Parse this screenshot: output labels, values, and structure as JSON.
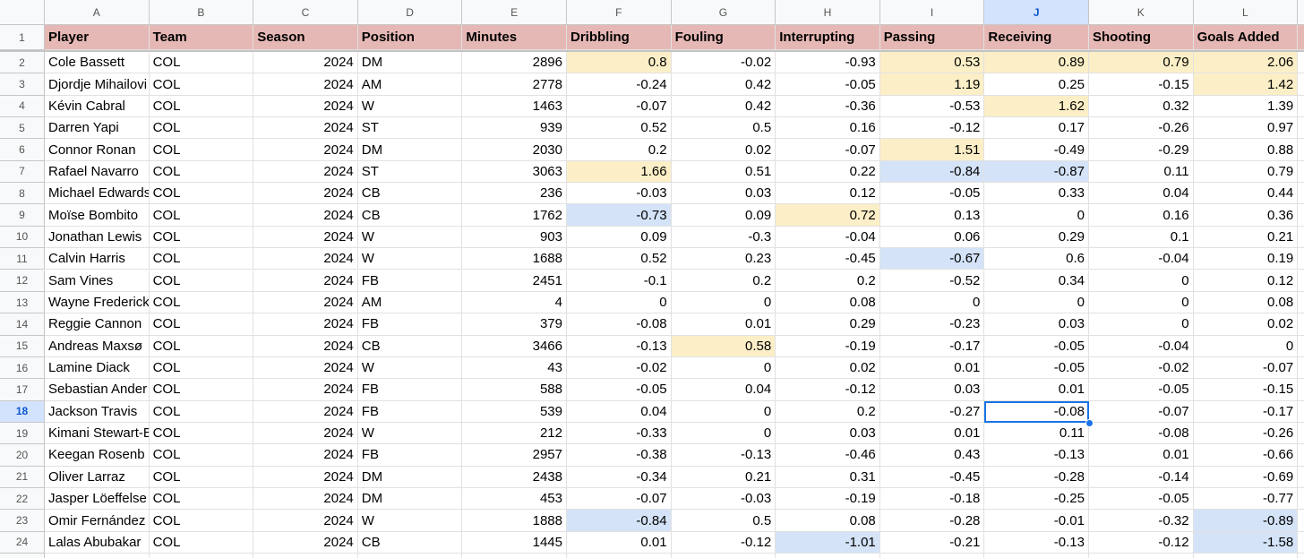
{
  "columns": [
    "A",
    "B",
    "C",
    "D",
    "E",
    "F",
    "G",
    "H",
    "I",
    "J",
    "K",
    "L"
  ],
  "row_numbers": [
    1,
    2,
    3,
    4,
    5,
    6,
    7,
    8,
    9,
    10,
    11,
    12,
    13,
    14,
    15,
    16,
    17,
    18,
    19,
    20,
    21,
    22,
    23,
    24
  ],
  "table": {
    "header": [
      "Player",
      "Team",
      "Season",
      "Position",
      "Minutes",
      "Dribbling",
      "Fouling",
      "Interrupting",
      "Passing",
      "Receiving",
      "Shooting",
      "Goals Added"
    ],
    "rows": [
      [
        "Cole Bassett",
        "COL",
        2024,
        "DM",
        2896,
        0.8,
        -0.02,
        -0.93,
        0.53,
        0.89,
        0.79,
        2.06
      ],
      [
        "Djordje Mihailovi",
        "COL",
        2024,
        "AM",
        2778,
        -0.24,
        0.42,
        -0.05,
        1.19,
        0.25,
        -0.15,
        1.42
      ],
      [
        "Kévin Cabral",
        "COL",
        2024,
        "W",
        1463,
        -0.07,
        0.42,
        -0.36,
        -0.53,
        1.62,
        0.32,
        1.39
      ],
      [
        "Darren Yapi",
        "COL",
        2024,
        "ST",
        939,
        0.52,
        0.5,
        0.16,
        -0.12,
        0.17,
        -0.26,
        0.97
      ],
      [
        "Connor Ronan",
        "COL",
        2024,
        "DM",
        2030,
        0.2,
        0.02,
        -0.07,
        1.51,
        -0.49,
        -0.29,
        0.88
      ],
      [
        "Rafael Navarro",
        "COL",
        2024,
        "ST",
        3063,
        1.66,
        0.51,
        0.22,
        -0.84,
        -0.87,
        0.11,
        0.79
      ],
      [
        "Michael Edwards",
        "COL",
        2024,
        "CB",
        236,
        -0.03,
        0.03,
        0.12,
        -0.05,
        0.33,
        0.04,
        0.44
      ],
      [
        "Moïse Bombito",
        "COL",
        2024,
        "CB",
        1762,
        -0.73,
        0.09,
        0.72,
        0.13,
        0,
        0.16,
        0.36
      ],
      [
        "Jonathan Lewis",
        "COL",
        2024,
        "W",
        903,
        0.09,
        -0.3,
        -0.04,
        0.06,
        0.29,
        0.1,
        0.21
      ],
      [
        "Calvin Harris",
        "COL",
        2024,
        "W",
        1688,
        0.52,
        0.23,
        -0.45,
        -0.67,
        0.6,
        -0.04,
        0.19
      ],
      [
        "Sam Vines",
        "COL",
        2024,
        "FB",
        2451,
        -0.1,
        0.2,
        0.2,
        -0.52,
        0.34,
        0,
        0.12
      ],
      [
        "Wayne Frederick",
        "COL",
        2024,
        "AM",
        4,
        0,
        0,
        0.08,
        0,
        0,
        0,
        0.08
      ],
      [
        "Reggie Cannon",
        "COL",
        2024,
        "FB",
        379,
        -0.08,
        0.01,
        0.29,
        -0.23,
        0.03,
        0,
        0.02
      ],
      [
        "Andreas Maxsø",
        "COL",
        2024,
        "CB",
        3466,
        -0.13,
        0.58,
        -0.19,
        -0.17,
        -0.05,
        -0.04,
        0
      ],
      [
        "Lamine Diack",
        "COL",
        2024,
        "W",
        43,
        -0.02,
        0,
        0.02,
        0.01,
        -0.05,
        -0.02,
        -0.07
      ],
      [
        "Sebastian Ander",
        "COL",
        2024,
        "FB",
        588,
        -0.05,
        0.04,
        -0.12,
        0.03,
        0.01,
        -0.05,
        -0.15
      ],
      [
        "Jackson Travis",
        "COL",
        2024,
        "FB",
        539,
        0.04,
        0,
        0.2,
        -0.27,
        -0.08,
        -0.07,
        -0.17
      ],
      [
        "Kimani Stewart-B",
        "COL",
        2024,
        "W",
        212,
        -0.33,
        0,
        0.03,
        0.01,
        0.11,
        -0.08,
        -0.26
      ],
      [
        "Keegan Rosenb",
        "COL",
        2024,
        "FB",
        2957,
        -0.38,
        -0.13,
        -0.46,
        0.43,
        -0.13,
        0.01,
        -0.66
      ],
      [
        "Oliver Larraz",
        "COL",
        2024,
        "DM",
        2438,
        -0.34,
        0.21,
        0.31,
        -0.45,
        -0.28,
        -0.14,
        -0.69
      ],
      [
        "Jasper Löeffelse",
        "COL",
        2024,
        "DM",
        453,
        -0.07,
        -0.03,
        -0.19,
        -0.18,
        -0.25,
        -0.05,
        -0.77
      ],
      [
        "Omir Fernández",
        "COL",
        2024,
        "W",
        1888,
        -0.84,
        0.5,
        0.08,
        -0.28,
        -0.01,
        -0.32,
        -0.89
      ],
      [
        "Lalas Abubakar",
        "COL",
        2024,
        "CB",
        1445,
        0.01,
        -0.12,
        -1.01,
        -0.21,
        -0.13,
        -0.12,
        -1.58
      ]
    ]
  }
}
